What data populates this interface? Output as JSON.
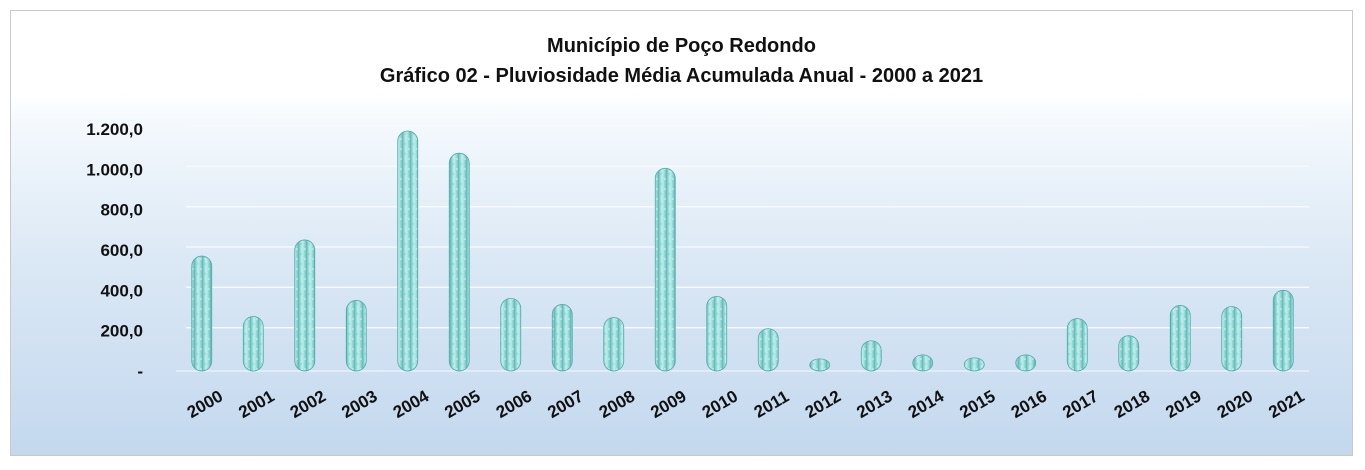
{
  "chart_data": {
    "type": "bar",
    "title": "Município de Poço Redondo",
    "subtitle": "Gráfico 02 - Pluviosidade Média Acumulada Anual - 2000 a 2021",
    "xlabel": "",
    "ylabel": "",
    "ylim": [
      0,
      1200
    ],
    "yticks": [
      0,
      200,
      400,
      600,
      800,
      1000,
      1200
    ],
    "ytick_labels": [
      "-",
      "200,0",
      "400,0",
      "600,0",
      "800,0",
      "1.000,0",
      "1.200,0"
    ],
    "grid": true,
    "legend": "none",
    "bar_color": "#a9e2e0",
    "categories": [
      "2000",
      "2001",
      "2002",
      "2003",
      "2004",
      "2005",
      "2006",
      "2007",
      "2008",
      "2009",
      "2010",
      "2011",
      "2012",
      "2013",
      "2014",
      "2015",
      "2016",
      "2017",
      "2018",
      "2019",
      "2020",
      "2021"
    ],
    "values": [
      570,
      270,
      650,
      350,
      1190,
      1080,
      360,
      330,
      265,
      1005,
      370,
      210,
      60,
      150,
      80,
      65,
      80,
      260,
      175,
      325,
      320,
      400
    ]
  }
}
